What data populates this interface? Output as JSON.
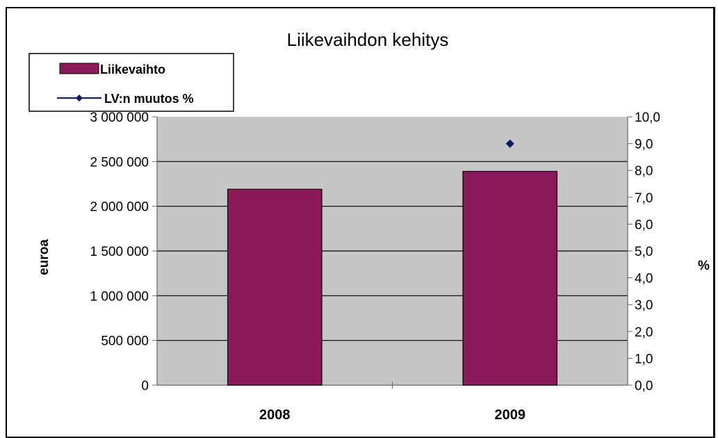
{
  "chart_data": {
    "type": "bar",
    "title": "Liikevaihdon kehitys",
    "categories": [
      "2008",
      "2009"
    ],
    "series": [
      {
        "name": "Liikevaihto",
        "kind": "bar",
        "axis": "left",
        "color": "#8B1A5B",
        "values": [
          2190000,
          2390000
        ]
      },
      {
        "name": "LV:n muutos %",
        "kind": "line",
        "axis": "right",
        "color": "#0a1a66",
        "values": [
          null,
          9.0
        ]
      }
    ],
    "ylabel": "euroa",
    "y2label": "%",
    "ylim": [
      0,
      3000000
    ],
    "y2lim": [
      0,
      10
    ],
    "yticks": [
      "0",
      "500 000",
      "1 000 000",
      "1 500 000",
      "2 000 000",
      "2 500 000",
      "3 000 000"
    ],
    "y2ticks": [
      "0,0",
      "1,0",
      "2,0",
      "3,0",
      "4,0",
      "5,0",
      "6,0",
      "7,0",
      "8,0",
      "9,0",
      "10,0"
    ],
    "grid": true,
    "plot_background": "#c6c6c6",
    "legend_position": "top-left"
  }
}
